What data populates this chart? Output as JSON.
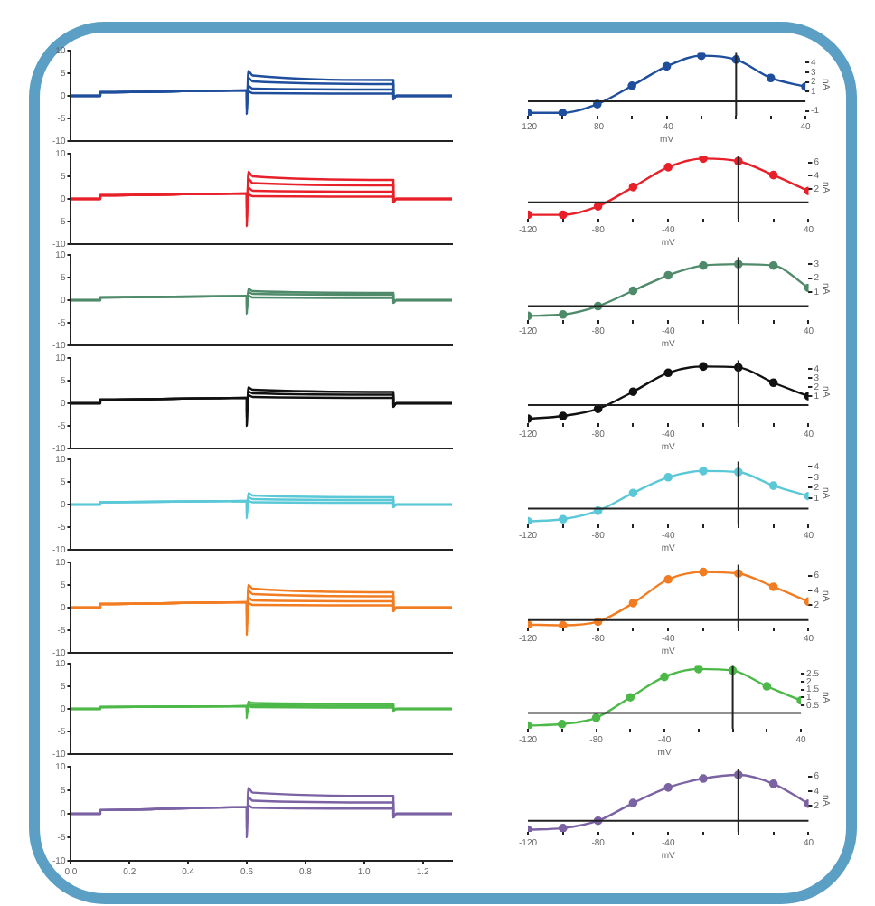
{
  "chart_data": [
    {
      "type": "line",
      "x": [
        0,
        0.1,
        0.1,
        0.6,
        0.6,
        0.605,
        0.62,
        1.1,
        1.1,
        1.11,
        1.3
      ],
      "series": [
        {
          "color": "#1f4e9c",
          "values": [
            0,
            0,
            0.8,
            1.2,
            -4,
            5.5,
            4.5,
            3.5,
            -0.8,
            0,
            0
          ]
        },
        {
          "color": "#1f4e9c",
          "values": [
            0,
            0,
            0.8,
            1.2,
            -3,
            4,
            3.2,
            2.6,
            -0.6,
            0,
            0
          ]
        },
        {
          "color": "#1f4e9c",
          "values": [
            0,
            0,
            0.8,
            1.2,
            -2,
            2.2,
            1.6,
            1.4,
            -0.4,
            0,
            0
          ]
        },
        {
          "color": "#1f4e9c",
          "values": [
            0,
            0,
            0.8,
            1.2,
            -1,
            1,
            0.6,
            0.5,
            -0.2,
            0,
            0
          ]
        }
      ],
      "xlim": [
        0,
        1.3
      ],
      "ylim": [
        -10,
        10
      ],
      "yticks": [
        -10,
        -5,
        0,
        5,
        10
      ],
      "tick_labels": "y",
      "marker": "none"
    },
    {
      "type": "line",
      "x": [
        -120,
        -100,
        -80,
        -60,
        -40,
        -20,
        0,
        20,
        40
      ],
      "series": [
        {
          "color": "#1f4e9c",
          "values": [
            -1.2,
            -1.2,
            -0.3,
            1.6,
            3.6,
            4.7,
            4.3,
            2.4,
            1.5
          ]
        }
      ],
      "xlim": [
        -120,
        40
      ],
      "xticks": [
        -120,
        {
          "value": -100,
          "label": null
        },
        -80,
        {
          "value": -60,
          "label": null
        },
        -40,
        {
          "value": -20,
          "label": null
        },
        {
          "value": 0,
          "label": null
        },
        {
          "value": 20,
          "label": null
        },
        40
      ],
      "ylim": [
        -1.5,
        5
      ],
      "yticks": [
        -1,
        1,
        2,
        3,
        4
      ],
      "xlabel": "mV",
      "ylabel": "nA",
      "marker": "circle"
    },
    {
      "type": "line",
      "x": [
        0,
        0.1,
        0.1,
        0.6,
        0.6,
        0.605,
        0.62,
        1.1,
        1.1,
        1.11,
        1.3
      ],
      "series": [
        {
          "color": "#e8202a",
          "values": [
            0,
            0,
            0.8,
            1.2,
            -6,
            6,
            5,
            4.2,
            -0.8,
            0,
            0
          ]
        },
        {
          "color": "#e8202a",
          "values": [
            0,
            0,
            0.8,
            1.2,
            -4,
            4.5,
            3.5,
            3,
            -0.6,
            0,
            0
          ]
        },
        {
          "color": "#e8202a",
          "values": [
            0,
            0,
            0.8,
            1.2,
            -2,
            2.5,
            1.8,
            1.6,
            -0.4,
            0,
            0
          ]
        },
        {
          "color": "#e8202a",
          "values": [
            0,
            0,
            0.8,
            1.2,
            -1,
            1,
            0.6,
            0.5,
            -0.2,
            0,
            0
          ]
        }
      ],
      "xlim": [
        0,
        1.3
      ],
      "ylim": [
        -10,
        10
      ],
      "yticks": [
        -10,
        -5,
        0,
        5,
        10
      ],
      "tick_labels": "y",
      "marker": "none"
    },
    {
      "type": "line",
      "x": [
        -120,
        -100,
        -80,
        -60,
        -40,
        -20,
        0,
        20,
        40
      ],
      "series": [
        {
          "color": "#e8202a",
          "values": [
            -1.9,
            -1.9,
            -0.6,
            2.3,
            5.3,
            6.6,
            6.2,
            4.1,
            1.7
          ]
        }
      ],
      "xlim": [
        -120,
        40
      ],
      "xticks": [
        -120,
        {
          "value": -100,
          "label": null
        },
        -80,
        {
          "value": -60,
          "label": null
        },
        -40,
        {
          "value": -20,
          "label": null
        },
        {
          "value": 0,
          "label": null
        },
        {
          "value": 20,
          "label": null
        },
        40
      ],
      "ylim": [
        -2.5,
        7
      ],
      "yticks": [
        2,
        4,
        6
      ],
      "xlabel": "mV",
      "ylabel": "nA",
      "marker": "circle"
    },
    {
      "type": "line",
      "x": [
        0,
        0.1,
        0.1,
        0.6,
        0.6,
        0.605,
        0.62,
        1.1,
        1.1,
        1.11,
        1.3
      ],
      "series": [
        {
          "color": "#4f8a6a",
          "values": [
            0,
            0,
            0.6,
            0.9,
            -3,
            2.5,
            2,
            1.6,
            -0.6,
            0,
            0
          ]
        },
        {
          "color": "#4f8a6a",
          "values": [
            0,
            0,
            0.6,
            0.9,
            -2,
            1.8,
            1.4,
            1.2,
            -0.4,
            0,
            0
          ]
        },
        {
          "color": "#4f8a6a",
          "values": [
            0,
            0,
            0.6,
            0.9,
            -1,
            1,
            0.6,
            0.5,
            -0.2,
            0,
            0
          ]
        }
      ],
      "xlim": [
        0,
        1.3
      ],
      "ylim": [
        -10,
        10
      ],
      "yticks": [
        -10,
        -5,
        0,
        5,
        10
      ],
      "tick_labels": "y",
      "marker": "none"
    },
    {
      "type": "line",
      "x": [
        -120,
        -100,
        -80,
        -60,
        -40,
        -20,
        0,
        20,
        40
      ],
      "series": [
        {
          "color": "#4f8a6a",
          "values": [
            -0.7,
            -0.6,
            0,
            1.1,
            2.2,
            2.9,
            3,
            2.9,
            1.3
          ]
        }
      ],
      "xlim": [
        -120,
        40
      ],
      "xticks": [
        -120,
        {
          "value": -100,
          "label": null
        },
        -80,
        {
          "value": -60,
          "label": null
        },
        -40,
        {
          "value": -20,
          "label": null
        },
        {
          "value": 0,
          "label": null
        },
        {
          "value": 20,
          "label": null
        },
        40
      ],
      "ylim": [
        -1,
        3.5
      ],
      "yticks": [
        1,
        2,
        3
      ],
      "xlabel": "mV",
      "ylabel": "nA",
      "marker": "circle"
    },
    {
      "type": "line",
      "x": [
        0,
        0.1,
        0.1,
        0.6,
        0.6,
        0.605,
        0.62,
        1.1,
        1.1,
        1.11,
        1.3
      ],
      "series": [
        {
          "color": "#111111",
          "values": [
            0,
            0,
            0.8,
            1.2,
            -5,
            3.5,
            3,
            2.5,
            -0.8,
            0,
            0
          ]
        },
        {
          "color": "#111111",
          "values": [
            0,
            0,
            0.8,
            1.2,
            -3,
            2.6,
            2.2,
            1.9,
            -0.6,
            0,
            0
          ]
        },
        {
          "color": "#111111",
          "values": [
            0,
            0,
            0.8,
            1.2,
            -2,
            1.8,
            1.4,
            1.2,
            -0.4,
            0,
            0
          ]
        }
      ],
      "xlim": [
        0,
        1.3
      ],
      "ylim": [
        -10,
        10
      ],
      "yticks": [
        -10,
        -5,
        0,
        5,
        10
      ],
      "tick_labels": "y",
      "marker": "none"
    },
    {
      "type": "line",
      "x": [
        -120,
        -100,
        -80,
        -60,
        -40,
        -20,
        0,
        20,
        40
      ],
      "series": [
        {
          "color": "#111111",
          "values": [
            -1.5,
            -1.2,
            -0.4,
            1.5,
            3.6,
            4.3,
            4.2,
            2.5,
            1
          ]
        }
      ],
      "xlim": [
        -120,
        40
      ],
      "xticks": [
        -120,
        {
          "value": -100,
          "label": null
        },
        -80,
        {
          "value": -60,
          "label": null
        },
        -40,
        {
          "value": -20,
          "label": null
        },
        {
          "value": 0,
          "label": null
        },
        {
          "value": 20,
          "label": null
        },
        40
      ],
      "ylim": [
        -2,
        5
      ],
      "yticks": [
        1,
        2,
        3,
        4
      ],
      "xlabel": "mV",
      "ylabel": "nA",
      "marker": "circle"
    },
    {
      "type": "line",
      "x": [
        0,
        0.1,
        0.1,
        0.6,
        0.6,
        0.605,
        0.62,
        1.1,
        1.1,
        1.11,
        1.3
      ],
      "series": [
        {
          "color": "#5bc8d8",
          "values": [
            0,
            0,
            0.5,
            0.8,
            -3,
            2.5,
            2,
            1.6,
            -0.6,
            0,
            0
          ]
        },
        {
          "color": "#5bc8d8",
          "values": [
            0,
            0,
            0.5,
            0.8,
            -2,
            1.6,
            1.2,
            1,
            -0.4,
            0,
            0
          ]
        },
        {
          "color": "#5bc8d8",
          "values": [
            0,
            0,
            0.5,
            0.8,
            -1,
            0.8,
            0.5,
            0.4,
            -0.2,
            0,
            0
          ]
        }
      ],
      "xlim": [
        0,
        1.3
      ],
      "ylim": [
        -10,
        10
      ],
      "yticks": [
        -10,
        -5,
        0,
        5,
        10
      ],
      "tick_labels": "y",
      "marker": "none"
    },
    {
      "type": "line",
      "x": [
        -120,
        -100,
        -80,
        -60,
        -40,
        -20,
        0,
        20,
        40
      ],
      "series": [
        {
          "color": "#5bc8d8",
          "values": [
            -1.2,
            -1,
            -0.2,
            1.5,
            3,
            3.6,
            3.5,
            2.2,
            1.2
          ]
        }
      ],
      "xlim": [
        -120,
        40
      ],
      "xticks": [
        -120,
        {
          "value": -100,
          "label": null
        },
        -80,
        {
          "value": -60,
          "label": null
        },
        -40,
        {
          "value": -20,
          "label": null
        },
        {
          "value": 0,
          "label": null
        },
        {
          "value": 20,
          "label": null
        },
        40
      ],
      "ylim": [
        -1.5,
        4.5
      ],
      "yticks": [
        1,
        2,
        3,
        4
      ],
      "xlabel": "mV",
      "ylabel": "nA",
      "marker": "circle"
    },
    {
      "type": "line",
      "x": [
        0,
        0.1,
        0.1,
        0.6,
        0.6,
        0.605,
        0.62,
        1.1,
        1.1,
        1.11,
        1.3
      ],
      "series": [
        {
          "color": "#f27c22",
          "values": [
            0,
            0,
            0.8,
            1.2,
            -6,
            5,
            4.2,
            3.4,
            -0.8,
            0,
            0
          ]
        },
        {
          "color": "#f27c22",
          "values": [
            0,
            0,
            0.8,
            1.2,
            -4,
            3.8,
            3,
            2.5,
            -0.6,
            0,
            0
          ]
        },
        {
          "color": "#f27c22",
          "values": [
            0,
            0,
            0.8,
            1.2,
            -2,
            2.2,
            1.6,
            1.4,
            -0.4,
            0,
            0
          ]
        },
        {
          "color": "#f27c22",
          "values": [
            0,
            0,
            0.8,
            1.2,
            -1,
            1,
            0.6,
            0.5,
            -0.2,
            0,
            0
          ]
        }
      ],
      "xlim": [
        0,
        1.3
      ],
      "ylim": [
        -10,
        10
      ],
      "yticks": [
        -10,
        -5,
        0,
        5,
        10
      ],
      "tick_labels": "y",
      "marker": "none"
    },
    {
      "type": "line",
      "x": [
        -120,
        -100,
        -80,
        -60,
        -40,
        -20,
        0,
        20,
        40
      ],
      "series": [
        {
          "color": "#f27c22",
          "values": [
            -0.6,
            -0.7,
            -0.2,
            2.3,
            5.5,
            6.5,
            6.3,
            4.5,
            2.5
          ]
        }
      ],
      "xlim": [
        -120,
        40
      ],
      "xticks": [
        -120,
        {
          "value": -100,
          "label": null
        },
        -80,
        {
          "value": -60,
          "label": null
        },
        -40,
        {
          "value": -20,
          "label": null
        },
        {
          "value": 0,
          "label": null
        },
        {
          "value": 20,
          "label": null
        },
        40
      ],
      "ylim": [
        -1,
        7.5
      ],
      "yticks": [
        2,
        4,
        6
      ],
      "xlabel": "mV",
      "ylabel": "nA",
      "marker": "circle"
    },
    {
      "type": "line",
      "x": [
        0,
        0.1,
        0.1,
        0.6,
        0.6,
        0.605,
        0.62,
        1.1,
        1.1,
        1.11,
        1.3
      ],
      "series": [
        {
          "color": "#4cb848",
          "values": [
            0,
            0,
            0.4,
            0.6,
            -2,
            1.6,
            1.3,
            1.1,
            -0.4,
            0,
            0
          ]
        },
        {
          "color": "#4cb848",
          "values": [
            0,
            0,
            0.4,
            0.6,
            -1,
            1,
            0.8,
            0.7,
            -0.2,
            0,
            0
          ]
        },
        {
          "color": "#4cb848",
          "values": [
            0,
            0,
            0.4,
            0.6,
            -0.5,
            0.6,
            0.4,
            0.3,
            -0.1,
            0,
            0
          ]
        }
      ],
      "xlim": [
        0,
        1.3
      ],
      "ylim": [
        -10,
        10
      ],
      "yticks": [
        -10,
        -5,
        0,
        5,
        10
      ],
      "tick_labels": "y",
      "marker": "none"
    },
    {
      "type": "line",
      "x": [
        -120,
        -100,
        -80,
        -60,
        -40,
        -20,
        0,
        20,
        40
      ],
      "series": [
        {
          "color": "#4cb848",
          "values": [
            -0.8,
            -0.7,
            -0.3,
            1,
            2.3,
            2.8,
            2.7,
            1.7,
            0.8
          ]
        }
      ],
      "xlim": [
        -120,
        40
      ],
      "xticks": [
        -120,
        {
          "value": -100,
          "label": null
        },
        -80,
        {
          "value": -60,
          "label": null
        },
        -40,
        {
          "value": -20,
          "label": null
        },
        {
          "value": 0,
          "label": null
        },
        {
          "value": 20,
          "label": null
        },
        40
      ],
      "ylim": [
        -1,
        3
      ],
      "yticks": [
        0.5,
        1,
        1.5,
        2,
        2.5
      ],
      "xlabel": "mV",
      "ylabel": "nA",
      "marker": "circle"
    },
    {
      "type": "line",
      "x": [
        0,
        0.1,
        0.1,
        0.6,
        0.6,
        0.605,
        0.62,
        1.1,
        1.1,
        1.11,
        1.3
      ],
      "series": [
        {
          "color": "#7b62a3",
          "values": [
            0,
            0,
            0.8,
            1.4,
            -5,
            5.5,
            4.5,
            3.8,
            -0.8,
            0,
            0
          ]
        },
        {
          "color": "#7b62a3",
          "values": [
            0,
            0,
            0.8,
            1.4,
            -3,
            3.5,
            2.8,
            2.4,
            -0.6,
            0,
            0
          ]
        },
        {
          "color": "#7b62a3",
          "values": [
            0,
            0,
            0.8,
            1.4,
            -1.5,
            1.8,
            1.3,
            1.1,
            -0.4,
            0,
            0
          ]
        }
      ],
      "xlim": [
        0,
        1.3
      ],
      "xticks": [
        {
          "value": 0,
          "label": "0.0"
        },
        {
          "value": 0.2,
          "label": "0.2"
        },
        {
          "value": 0.4,
          "label": "0.4"
        },
        {
          "value": 0.6,
          "label": "0.6"
        },
        {
          "value": 0.8,
          "label": "0.8"
        },
        {
          "value": 1,
          "label": "1.0"
        },
        {
          "value": 1.2,
          "label": "1.2"
        }
      ],
      "ylim": [
        -10,
        10
      ],
      "yticks": [
        -10,
        -5,
        0,
        5,
        10
      ],
      "marker": "none"
    },
    {
      "type": "line",
      "x": [
        -120,
        -100,
        -80,
        -60,
        -40,
        -20,
        0,
        20,
        40
      ],
      "series": [
        {
          "color": "#7b62a3",
          "values": [
            -1.2,
            -1,
            0,
            2.4,
            4.5,
            5.7,
            6.2,
            5,
            2.3
          ]
        }
      ],
      "xlim": [
        -120,
        40
      ],
      "xticks": [
        -120,
        {
          "value": -100,
          "label": null
        },
        -80,
        {
          "value": -60,
          "label": null
        },
        -40,
        {
          "value": -20,
          "label": null
        },
        {
          "value": 0,
          "label": null
        },
        {
          "value": 20,
          "label": null
        },
        40
      ],
      "ylim": [
        -1.5,
        7
      ],
      "yticks": [
        2,
        4,
        6
      ],
      "xlabel": "mV",
      "ylabel": "nA",
      "marker": "circle"
    }
  ]
}
